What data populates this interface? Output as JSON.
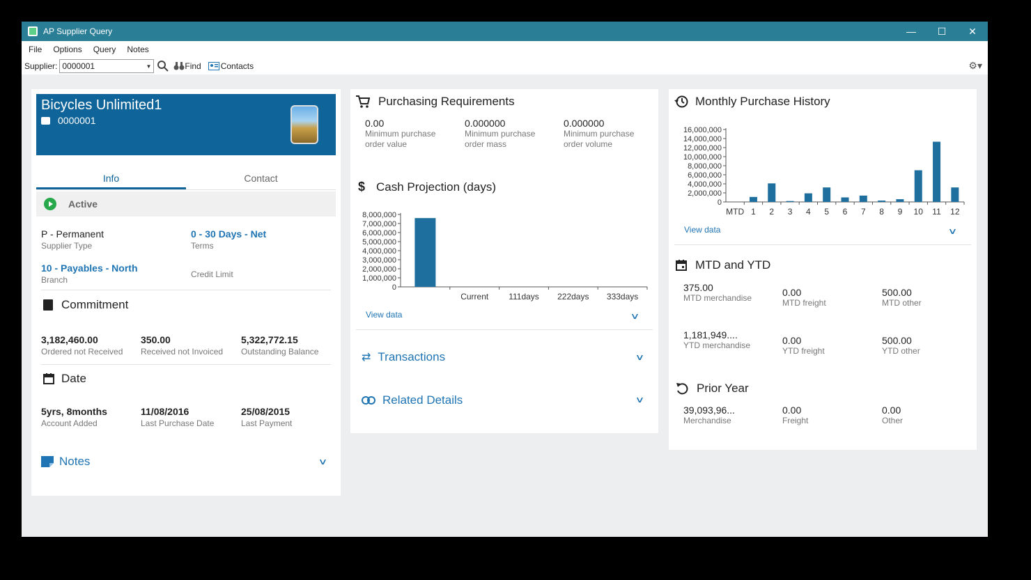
{
  "window": {
    "title": "AP Supplier Query"
  },
  "menu": [
    "File",
    "Options",
    "Query",
    "Notes"
  ],
  "toolbar": {
    "supplier_label": "Supplier:",
    "supplier_value": "0000001",
    "find_label": "Find",
    "contacts_label": "Contacts"
  },
  "supplier": {
    "name": "Bicycles Unlimited1",
    "code": "0000001",
    "tabs": [
      "Info",
      "Contact"
    ],
    "status": "Active",
    "supplier_type": {
      "value": "P - Permanent",
      "label": "Supplier Type"
    },
    "terms": {
      "value": "0 - 30 Days - Net",
      "label": "Terms"
    },
    "branch": {
      "value": "10 - Payables - North",
      "label": "Branch"
    },
    "credit_limit": {
      "label": "Credit Limit"
    }
  },
  "commitment": {
    "title": "Commitment",
    "items": [
      {
        "value": "3,182,460.00",
        "label": "Ordered not Received"
      },
      {
        "value": "350.00",
        "label": "Received not Invoiced"
      },
      {
        "value": "5,322,772.15",
        "label": "Outstanding Balance"
      }
    ]
  },
  "date": {
    "title": "Date",
    "items": [
      {
        "value": "5yrs, 8months",
        "label": "Account Added"
      },
      {
        "value": "11/08/2016",
        "label": "Last Purchase Date"
      },
      {
        "value": "25/08/2015",
        "label": "Last Payment"
      }
    ]
  },
  "notes": {
    "title": "Notes"
  },
  "purchasing": {
    "title": "Purchasing Requirements",
    "items": [
      {
        "value": "0.00",
        "label": "Minimum purchase order value"
      },
      {
        "value": "0.000000",
        "label": "Minimum purchase order mass"
      },
      {
        "value": "0.000000",
        "label": "Minimum purchase order volume"
      }
    ]
  },
  "cash_projection": {
    "title": "Cash Projection (days)",
    "view_data": "View data"
  },
  "transactions": {
    "title": "Transactions"
  },
  "related": {
    "title": "Related Details"
  },
  "monthly": {
    "title": "Monthly Purchase History",
    "view_data": "View data"
  },
  "mtd_ytd": {
    "title": "MTD and YTD",
    "items": [
      {
        "value": "375.00",
        "label": "MTD merchandise"
      },
      {
        "value": "0.00",
        "label": "MTD freight"
      },
      {
        "value": "500.00",
        "label": "MTD other"
      },
      {
        "value": "1,181,949....",
        "label": "YTD merchandise"
      },
      {
        "value": "0.00",
        "label": "YTD freight"
      },
      {
        "value": "500.00",
        "label": "YTD other"
      }
    ]
  },
  "prior_year": {
    "title": "Prior Year",
    "items": [
      {
        "value": "39,093,96...",
        "label": "Merchandise"
      },
      {
        "value": "0.00",
        "label": "Freight"
      },
      {
        "value": "0.00",
        "label": "Other"
      }
    ]
  },
  "chart_data": [
    {
      "type": "bar",
      "categories": [
        "",
        "Current",
        "111days",
        "222days",
        "333days"
      ],
      "values": [
        7600000,
        0,
        0,
        0,
        0
      ],
      "ylim": [
        0,
        8000000
      ],
      "yticks": [
        "8,000,000",
        "7,000,000",
        "6,000,000",
        "5,000,000",
        "4,000,000",
        "3,000,000",
        "2,000,000",
        "1,000,000",
        "0"
      ],
      "color": "#1f6f9e"
    },
    {
      "type": "bar",
      "categories": [
        "MTD",
        "1",
        "2",
        "3",
        "4",
        "5",
        "6",
        "7",
        "8",
        "9",
        "10",
        "11",
        "12"
      ],
      "values": [
        0,
        1100000,
        4100000,
        200000,
        1900000,
        3200000,
        1000000,
        1400000,
        300000,
        600000,
        7000000,
        13300000,
        3200000
      ],
      "ylim": [
        0,
        16000000
      ],
      "yticks": [
        "16,000,000",
        "14,000,000",
        "12,000,000",
        "10,000,000",
        "8,000,000",
        "6,000,000",
        "4,000,000",
        "2,000,000",
        "0"
      ],
      "color": "#1f6f9e"
    }
  ]
}
